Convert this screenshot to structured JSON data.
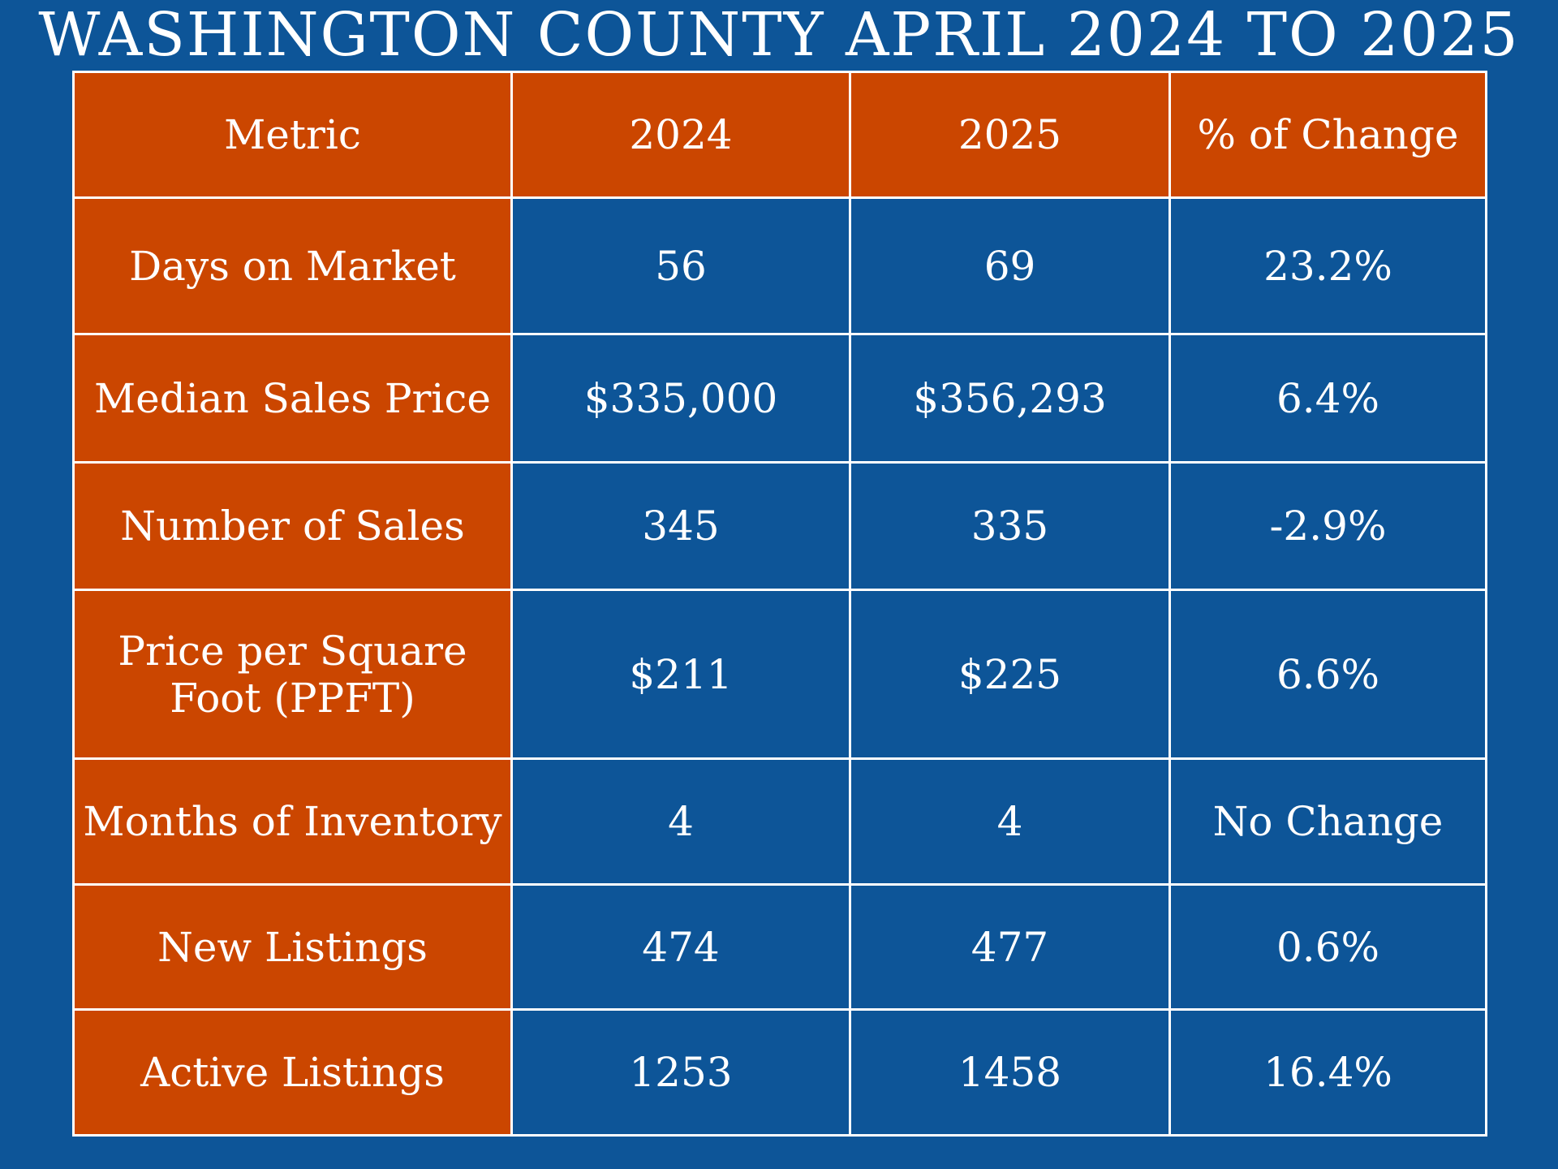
{
  "title": "WASHINGTON COUNTY APRIL 2024 TO 2025",
  "colors": {
    "background": "#0d5598",
    "accent": "#cb4600",
    "text": "#ffffff",
    "grid": "#ffffff"
  },
  "table": {
    "headers": [
      "Metric",
      "2024",
      "2025",
      "% of Change"
    ],
    "rows": [
      {
        "metric": "Days on Market",
        "y2024": "56",
        "y2025": "69",
        "change": "23.2%"
      },
      {
        "metric": "Median Sales Price",
        "y2024": "$335,000",
        "y2025": "$356,293",
        "change": "6.4%"
      },
      {
        "metric": "Number of Sales",
        "y2024": "345",
        "y2025": "335",
        "change": "-2.9%"
      },
      {
        "metric": "Price per Square Foot (PPFT)",
        "y2024": "$211",
        "y2025": "$225",
        "change": "6.6%"
      },
      {
        "metric": "Months of Inventory",
        "y2024": "4",
        "y2025": "4",
        "change": "No Change"
      },
      {
        "metric": "New Listings",
        "y2024": "474",
        "y2025": "477",
        "change": "0.6%"
      },
      {
        "metric": "Active Listings",
        "y2024": "1253",
        "y2025": "1458",
        "change": "16.4%"
      }
    ]
  }
}
